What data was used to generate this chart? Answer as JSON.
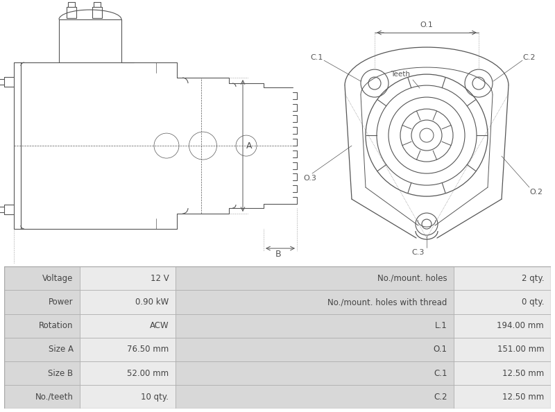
{
  "table_rows": [
    [
      "Voltage",
      "12 V",
      "No./mount. holes",
      "2 qty."
    ],
    [
      "Power",
      "0.90 kW",
      "No./mount. holes with thread",
      "0 qty."
    ],
    [
      "Rotation",
      "ACW",
      "L.1",
      "194.00 mm"
    ],
    [
      "Size A",
      "76.50 mm",
      "O.1",
      "151.00 mm"
    ],
    [
      "Size B",
      "52.00 mm",
      "C.1",
      "12.50 mm"
    ],
    [
      "No./teeth",
      "10 qty.",
      "C.2",
      "12.50 mm"
    ]
  ],
  "table_header_bg": "#d8d8d8",
  "table_row_bg": "#ebebeb",
  "table_border": "#aaaaaa",
  "bg_color": "#ffffff",
  "drawing_color": "#555555",
  "font_color": "#444444"
}
